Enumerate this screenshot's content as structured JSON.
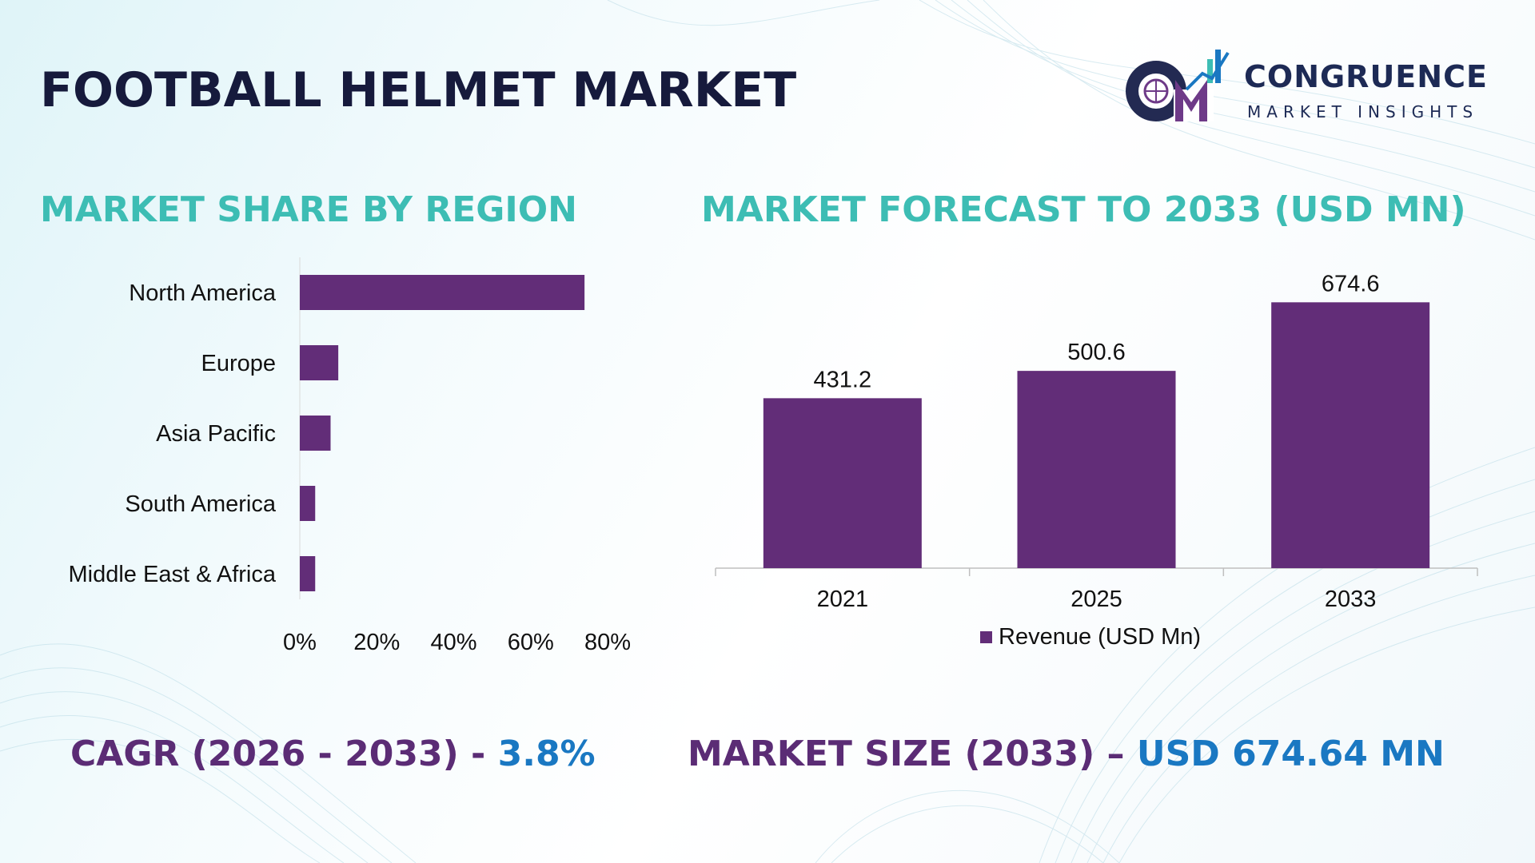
{
  "title": "FOOTBALL HELMET MARKET",
  "logo": {
    "initials": "CM",
    "name": "CONGRUENCE",
    "subtitle": "MARKET INSIGHTS"
  },
  "colors": {
    "bar": "#622d78",
    "title": "#161a3c",
    "section_title": "#3dbdb4",
    "footer_label": "#5b2c75",
    "footer_value": "#1a78c2"
  },
  "region_section": {
    "title": "MARKET SHARE BY REGION"
  },
  "forecast_section": {
    "title": "MARKET FORECAST TO 2033 (USD MN)"
  },
  "chart_data": [
    {
      "type": "bar",
      "orientation": "horizontal",
      "categories": [
        "North America",
        "Europe",
        "Asia Pacific",
        "South America",
        "Middle East & Africa"
      ],
      "values": [
        74,
        10,
        8,
        4,
        4
      ],
      "xlim": [
        0,
        80
      ],
      "xticks": [
        "0%",
        "20%",
        "40%",
        "60%",
        "80%"
      ],
      "grid": false,
      "legend": "none"
    },
    {
      "type": "bar",
      "orientation": "vertical",
      "categories": [
        "2021",
        "2025",
        "2033"
      ],
      "series": [
        {
          "name": "Revenue (USD Mn)",
          "values": [
            431.2,
            500.6,
            674.6
          ]
        }
      ],
      "data_labels": [
        "431.2",
        "500.6",
        "674.6"
      ],
      "ylim": [
        0,
        730
      ],
      "grid": false,
      "legend": "bottom-center"
    }
  ],
  "footer": {
    "cagr_label": "CAGR (2026 - 2033) - ",
    "cagr_value": "3.8%",
    "size_label": "MARKET SIZE (2033) – ",
    "size_value": "USD 674.64 MN"
  }
}
